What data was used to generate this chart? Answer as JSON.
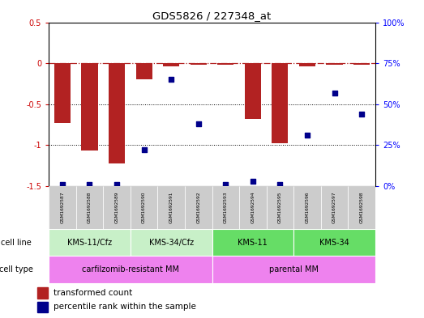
{
  "title": "GDS5826 / 227348_at",
  "samples": [
    "GSM1692587",
    "GSM1692588",
    "GSM1692589",
    "GSM1692590",
    "GSM1692591",
    "GSM1692592",
    "GSM1692593",
    "GSM1692594",
    "GSM1692595",
    "GSM1692596",
    "GSM1692597",
    "GSM1692598"
  ],
  "bar_values": [
    -0.73,
    -1.07,
    -1.22,
    -0.2,
    -0.04,
    -0.02,
    -0.02,
    -0.68,
    -0.98,
    -0.04,
    -0.02,
    -0.02
  ],
  "dot_values_pct": [
    1,
    1,
    1,
    22,
    65,
    38,
    1,
    3,
    1,
    31,
    57,
    44
  ],
  "ylim_left": [
    -1.5,
    0.5
  ],
  "bar_color": "#b22222",
  "dot_color": "#00008b",
  "dotted_lines": [
    -0.5,
    -1.0
  ],
  "cell_line_groups": [
    {
      "label": "KMS-11/Cfz",
      "start": 0,
      "end": 2,
      "color": "#c8f0c8"
    },
    {
      "label": "KMS-34/Cfz",
      "start": 3,
      "end": 5,
      "color": "#c8f0c8"
    },
    {
      "label": "KMS-11",
      "start": 6,
      "end": 8,
      "color": "#66dd66"
    },
    {
      "label": "KMS-34",
      "start": 9,
      "end": 11,
      "color": "#66dd66"
    }
  ],
  "cell_type_groups": [
    {
      "label": "carfilzomib-resistant MM",
      "start": 0,
      "end": 5,
      "color": "#ee82ee"
    },
    {
      "label": "parental MM",
      "start": 6,
      "end": 11,
      "color": "#ee82ee"
    }
  ],
  "cell_line_label": "cell line",
  "cell_type_label": "cell type",
  "legend_bar_label": "transformed count",
  "legend_dot_label": "percentile rank within the sample",
  "right_yticks": [
    0,
    25,
    50,
    75,
    100
  ],
  "right_yticklabels": [
    "0%",
    "25%",
    "50%",
    "75%",
    "100%"
  ],
  "left_yticks": [
    -1.5,
    -1.0,
    -0.5,
    0,
    0.5
  ],
  "left_yticklabels": [
    "-1.5",
    "-1",
    "-0.5",
    "0",
    "0.5"
  ]
}
